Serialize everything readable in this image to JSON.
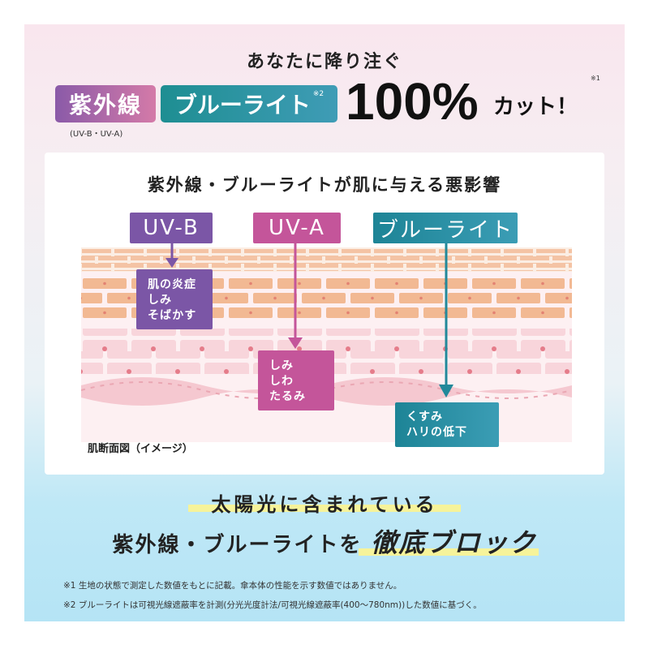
{
  "header": {
    "subtitle": "あなたに降り注ぐ",
    "uv_label": "紫外線",
    "uv_sub": "(UV-B・UV-A)",
    "blue_label": "ブルーライト",
    "blue_note": "※2",
    "percent": "100%",
    "cut": "カット！",
    "cut_note": "※1"
  },
  "diagram": {
    "title": "紫外線・ブルーライトが肌に与える悪影響",
    "labels": [
      {
        "text": "UV-B",
        "color": "#7b56a6"
      },
      {
        "text": "UV-A",
        "color": "#c4559a"
      },
      {
        "text": "ブルーライト",
        "color": "#22899a"
      }
    ],
    "effects": [
      [
        "肌の炎症",
        "しみ",
        "そばかす"
      ],
      [
        "しみ",
        "しわ",
        "たるみ"
      ],
      [
        "くすみ",
        "ハリの低下"
      ]
    ],
    "skin_caption": "肌断面図（イメージ）"
  },
  "bottom": {
    "line1": "太陽光に含まれている",
    "line2a": "紫外線・ブルーライトを",
    "line2b": "徹底ブロック"
  },
  "footnotes": [
    "※1 生地の状態で測定した数値をもとに記載。傘本体の性能を示す数値ではありません。",
    "※2 ブルーライトは可視光線遮蔽率を計測(分光光度計法/可視光線遮蔽率(400〜780nm))した数値に基づく。"
  ]
}
